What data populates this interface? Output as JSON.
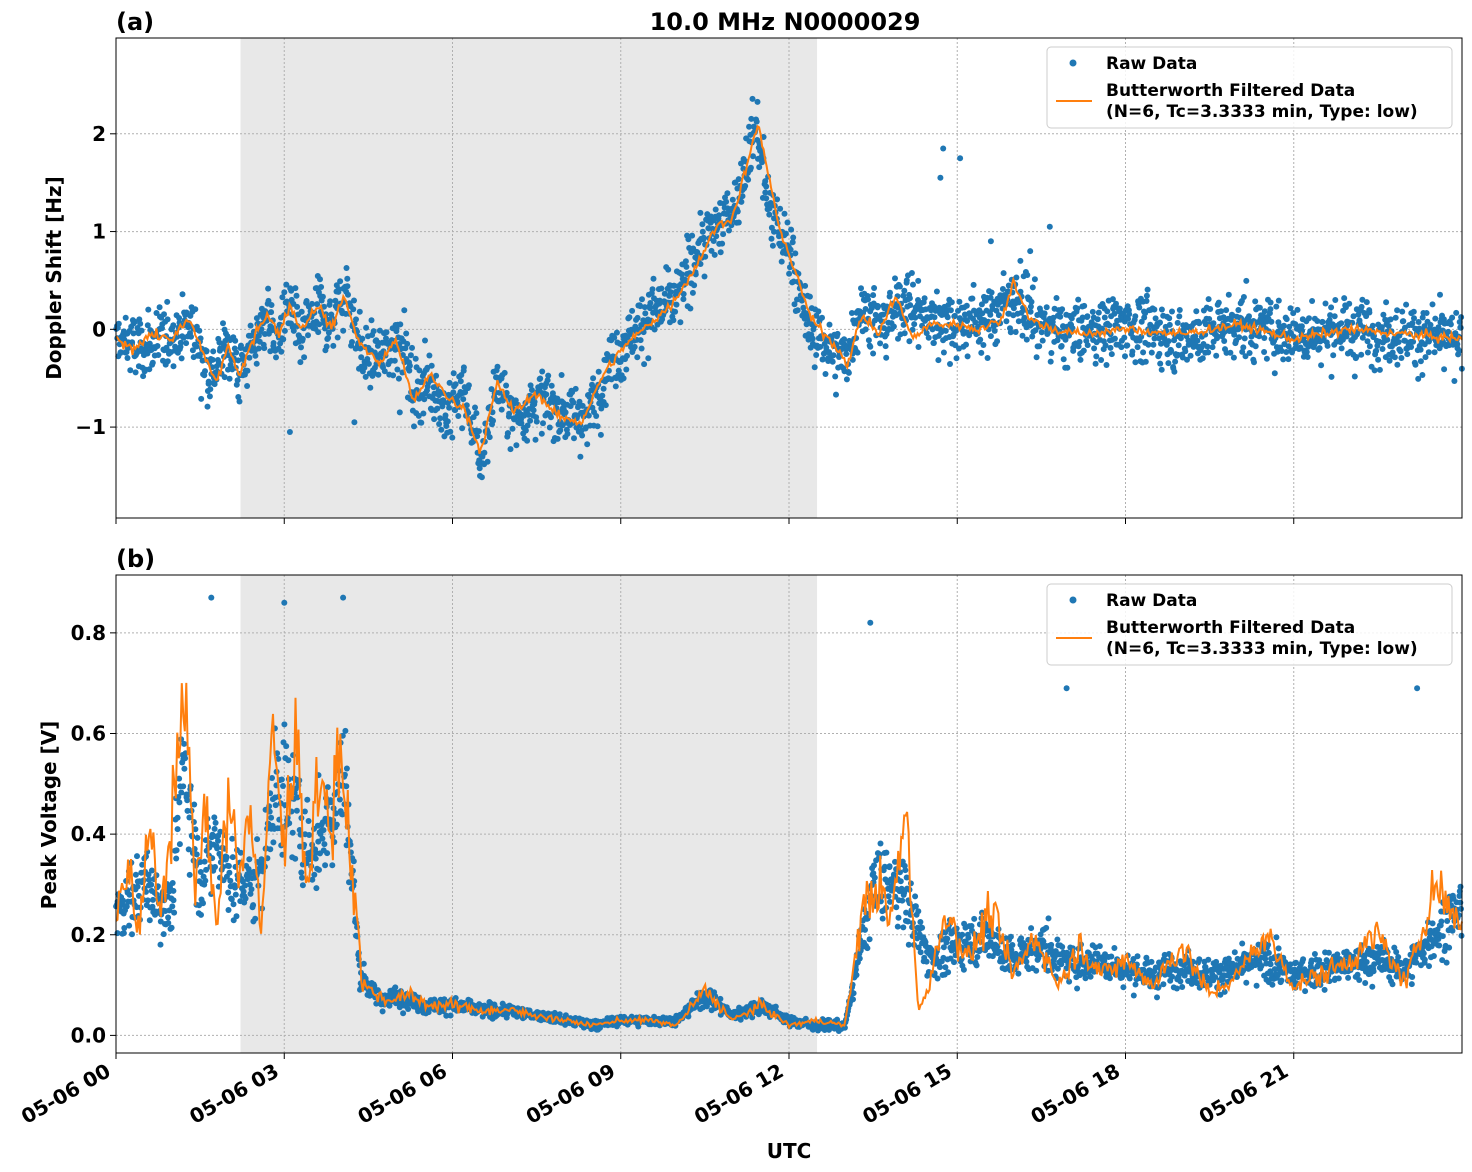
{
  "figure": {
    "xlabel": "UTC",
    "x_ticks": [
      "05-06 00",
      "05-06 03",
      "05-06 06",
      "05-06 09",
      "05-06 12",
      "05-06 15",
      "05-06 18",
      "05-06 21"
    ]
  },
  "chart_data": [
    {
      "type": "scatter",
      "panel_label": "(a)",
      "title": "10.0 MHz N0000029",
      "ylabel": "Doppler Shift [Hz]",
      "xlim_hours": [
        0,
        24
      ],
      "ylim": [
        -1.93,
        2.98
      ],
      "y_ticks": [
        -1,
        0,
        1,
        2
      ],
      "y_tick_labels": [
        "−1",
        "0",
        "1",
        "2"
      ],
      "grid": true,
      "legend_position": "top-right",
      "shaded_region_hours": [
        2.22,
        12.5
      ],
      "series": [
        {
          "name": "Raw Data",
          "kind": "scatter",
          "color": "#1f77b4",
          "points_hours": [
            [
              0,
              -0.1
            ],
            [
              0.5,
              -0.2
            ],
            [
              1,
              -0.05
            ],
            [
              1.35,
              0.05
            ],
            [
              1.7,
              -0.5
            ],
            [
              1.85,
              -0.3
            ],
            [
              2,
              -0.15
            ],
            [
              2.2,
              -0.45
            ],
            [
              2.5,
              -0.1
            ],
            [
              2.7,
              0.2
            ],
            [
              2.85,
              -0.2
            ],
            [
              3.05,
              0.25
            ],
            [
              3.3,
              -0.1
            ],
            [
              3.6,
              0.25
            ],
            [
              3.8,
              0.05
            ],
            [
              4.1,
              0.4
            ],
            [
              4.4,
              -0.3
            ],
            [
              4.8,
              -0.25
            ],
            [
              5.1,
              -0.05
            ],
            [
              5.3,
              -0.65
            ],
            [
              5.6,
              -0.5
            ],
            [
              5.9,
              -0.9
            ],
            [
              6.2,
              -0.6
            ],
            [
              6.5,
              -1.35
            ],
            [
              6.8,
              -0.55
            ],
            [
              7.1,
              -0.95
            ],
            [
              7.5,
              -0.7
            ],
            [
              8,
              -0.85
            ],
            [
              8.4,
              -0.9
            ],
            [
              8.8,
              -0.35
            ],
            [
              9.2,
              -0.05
            ],
            [
              9.6,
              0.2
            ],
            [
              10,
              0.3
            ],
            [
              10.4,
              0.85
            ],
            [
              10.8,
              1.1
            ],
            [
              11.1,
              1.35
            ],
            [
              11.4,
              2.1
            ],
            [
              11.7,
              1.1
            ],
            [
              12,
              0.85
            ],
            [
              12.3,
              0.1
            ],
            [
              12.7,
              -0.2
            ],
            [
              13,
              -0.3
            ],
            [
              13.3,
              0.25
            ],
            [
              13.7,
              0
            ],
            [
              14,
              0.3
            ],
            [
              14.5,
              0.1
            ],
            [
              15,
              0.05
            ],
            [
              15.5,
              0.1
            ],
            [
              16,
              0.35
            ],
            [
              16.5,
              0.05
            ],
            [
              17,
              -0.05
            ],
            [
              18,
              0.05
            ],
            [
              19,
              -0.1
            ],
            [
              20,
              0.05
            ],
            [
              21,
              -0.05
            ],
            [
              22,
              0
            ],
            [
              23,
              -0.05
            ],
            [
              24,
              -0.15
            ]
          ],
          "outliers": [
            [
              13.5,
              0.35
            ],
            [
              14.1,
              0.5
            ],
            [
              14.7,
              1.55
            ],
            [
              14.75,
              1.85
            ],
            [
              15.05,
              1.75
            ],
            [
              14.3,
              0.3
            ],
            [
              16.3,
              0.8
            ],
            [
              16.65,
              1.05
            ],
            [
              15.6,
              0.9
            ],
            [
              5.06,
              -0.85
            ],
            [
              4.25,
              -0.95
            ],
            [
              3.1,
              -1.05
            ]
          ]
        },
        {
          "name": "Butterworth Filtered Data\n(N=6, Tc=3.3333 min, Type: low)",
          "kind": "line",
          "color": "#ff7f0e",
          "points_hours": [
            [
              0,
              -0.1
            ],
            [
              0.3,
              -0.2
            ],
            [
              0.6,
              -0.05
            ],
            [
              1,
              -0.1
            ],
            [
              1.3,
              0.1
            ],
            [
              1.6,
              -0.3
            ],
            [
              1.8,
              -0.55
            ],
            [
              2.0,
              -0.15
            ],
            [
              2.2,
              -0.5
            ],
            [
              2.5,
              0
            ],
            [
              2.7,
              0.15
            ],
            [
              2.9,
              -0.05
            ],
            [
              3.1,
              0.25
            ],
            [
              3.3,
              0
            ],
            [
              3.6,
              0.25
            ],
            [
              3.85,
              0
            ],
            [
              4.05,
              0.35
            ],
            [
              4.35,
              -0.15
            ],
            [
              4.7,
              -0.35
            ],
            [
              5,
              -0.1
            ],
            [
              5.3,
              -0.75
            ],
            [
              5.6,
              -0.45
            ],
            [
              5.9,
              -0.7
            ],
            [
              6.2,
              -0.8
            ],
            [
              6.5,
              -1.25
            ],
            [
              6.8,
              -0.55
            ],
            [
              7.1,
              -0.85
            ],
            [
              7.5,
              -0.65
            ],
            [
              7.9,
              -0.9
            ],
            [
              8.3,
              -0.95
            ],
            [
              8.7,
              -0.45
            ],
            [
              9.1,
              -0.15
            ],
            [
              9.5,
              0.05
            ],
            [
              9.9,
              0.25
            ],
            [
              10.3,
              0.6
            ],
            [
              10.7,
              1.05
            ],
            [
              11.0,
              1.15
            ],
            [
              11.45,
              2.1
            ],
            [
              11.8,
              1.1
            ],
            [
              12.1,
              0.6
            ],
            [
              12.4,
              0.1
            ],
            [
              12.8,
              -0.15
            ],
            [
              13.05,
              -0.35
            ],
            [
              13.3,
              0.15
            ],
            [
              13.6,
              -0.05
            ],
            [
              13.9,
              0.35
            ],
            [
              14.2,
              -0.1
            ],
            [
              14.5,
              0.05
            ],
            [
              15,
              0.05
            ],
            [
              15.4,
              0
            ],
            [
              15.8,
              0.1
            ],
            [
              16.0,
              0.5
            ],
            [
              16.3,
              0.1
            ],
            [
              16.7,
              0
            ],
            [
              17.2,
              -0.05
            ],
            [
              18,
              0
            ],
            [
              19,
              -0.05
            ],
            [
              20,
              0.05
            ],
            [
              21,
              -0.1
            ],
            [
              22,
              0
            ],
            [
              23,
              -0.05
            ],
            [
              24,
              -0.1
            ]
          ]
        }
      ]
    },
    {
      "type": "scatter",
      "panel_label": "(b)",
      "title": "",
      "ylabel": "Peak Voltage [V]",
      "xlabel": "UTC",
      "xlim_hours": [
        0,
        24
      ],
      "ylim": [
        -0.035,
        0.915
      ],
      "y_ticks": [
        0,
        0.2,
        0.4,
        0.6,
        0.8
      ],
      "y_tick_labels": [
        "0.0",
        "0.2",
        "0.4",
        "0.6",
        "0.8"
      ],
      "grid": true,
      "legend_position": "top-right",
      "shaded_region_hours": [
        2.22,
        12.5
      ],
      "series": [
        {
          "name": "Raw Data",
          "kind": "scatter",
          "color": "#1f77b4",
          "points_hours": [
            [
              0,
              0.25
            ],
            [
              0.5,
              0.3
            ],
            [
              1,
              0.25
            ],
            [
              1.2,
              0.55
            ],
            [
              1.5,
              0.3
            ],
            [
              1.8,
              0.4
            ],
            [
              2.1,
              0.3
            ],
            [
              2.5,
              0.3
            ],
            [
              2.9,
              0.5
            ],
            [
              3.2,
              0.45
            ],
            [
              3.5,
              0.35
            ],
            [
              3.8,
              0.45
            ],
            [
              4.1,
              0.5
            ],
            [
              4.35,
              0.12
            ],
            [
              4.7,
              0.07
            ],
            [
              5,
              0.08
            ],
            [
              5.5,
              0.06
            ],
            [
              6,
              0.06
            ],
            [
              6.5,
              0.05
            ],
            [
              7,
              0.05
            ],
            [
              7.5,
              0.04
            ],
            [
              8,
              0.03
            ],
            [
              8.5,
              0.02
            ],
            [
              9,
              0.03
            ],
            [
              9.5,
              0.03
            ],
            [
              10,
              0.03
            ],
            [
              10.5,
              0.08
            ],
            [
              11,
              0.04
            ],
            [
              11.5,
              0.06
            ],
            [
              12,
              0.03
            ],
            [
              12.5,
              0.02
            ],
            [
              13,
              0.02
            ],
            [
              13.5,
              0.3
            ],
            [
              14,
              0.3
            ],
            [
              14.5,
              0.15
            ],
            [
              15,
              0.18
            ],
            [
              15.5,
              0.2
            ],
            [
              16,
              0.15
            ],
            [
              16.5,
              0.18
            ],
            [
              17,
              0.14
            ],
            [
              17.5,
              0.15
            ],
            [
              18,
              0.13
            ],
            [
              18.5,
              0.12
            ],
            [
              19,
              0.14
            ],
            [
              19.5,
              0.12
            ],
            [
              20,
              0.13
            ],
            [
              20.5,
              0.15
            ],
            [
              21,
              0.12
            ],
            [
              21.5,
              0.13
            ],
            [
              22,
              0.14
            ],
            [
              22.5,
              0.15
            ],
            [
              23,
              0.13
            ],
            [
              23.5,
              0.2
            ],
            [
              24,
              0.25
            ]
          ],
          "outliers": [
            [
              1.7,
              0.87
            ],
            [
              3.0,
              0.86
            ],
            [
              4.05,
              0.87
            ],
            [
              13.45,
              0.82
            ],
            [
              16.95,
              0.69
            ],
            [
              23.2,
              0.69
            ]
          ]
        },
        {
          "name": "Butterworth Filtered Data\n(N=6, Tc=3.3333 min, Type: low)",
          "kind": "line",
          "color": "#ff7f0e",
          "points_hours": [
            [
              0,
              0.25
            ],
            [
              0.2,
              0.33
            ],
            [
              0.4,
              0.2
            ],
            [
              0.6,
              0.4
            ],
            [
              0.8,
              0.25
            ],
            [
              1.0,
              0.45
            ],
            [
              1.2,
              0.74
            ],
            [
              1.4,
              0.3
            ],
            [
              1.6,
              0.45
            ],
            [
              1.8,
              0.2
            ],
            [
              2.0,
              0.5
            ],
            [
              2.2,
              0.3
            ],
            [
              2.4,
              0.45
            ],
            [
              2.6,
              0.2
            ],
            [
              2.8,
              0.65
            ],
            [
              3.0,
              0.35
            ],
            [
              3.2,
              0.62
            ],
            [
              3.4,
              0.3
            ],
            [
              3.6,
              0.52
            ],
            [
              3.8,
              0.4
            ],
            [
              4.0,
              0.58
            ],
            [
              4.2,
              0.35
            ],
            [
              4.4,
              0.1
            ],
            [
              4.8,
              0.07
            ],
            [
              5.2,
              0.08
            ],
            [
              5.6,
              0.06
            ],
            [
              6.0,
              0.06
            ],
            [
              6.5,
              0.05
            ],
            [
              7.0,
              0.05
            ],
            [
              7.5,
              0.04
            ],
            [
              8,
              0.03
            ],
            [
              8.5,
              0.02
            ],
            [
              9,
              0.03
            ],
            [
              9.5,
              0.03
            ],
            [
              10,
              0.02
            ],
            [
              10.5,
              0.09
            ],
            [
              11,
              0.03
            ],
            [
              11.5,
              0.06
            ],
            [
              12,
              0.02
            ],
            [
              12.5,
              0.03
            ],
            [
              13,
              0.02
            ],
            [
              13.3,
              0.25
            ],
            [
              13.6,
              0.3
            ],
            [
              13.8,
              0.22
            ],
            [
              14.1,
              0.45
            ],
            [
              14.3,
              0.05
            ],
            [
              14.5,
              0.1
            ],
            [
              14.8,
              0.25
            ],
            [
              15.2,
              0.15
            ],
            [
              15.6,
              0.25
            ],
            [
              16,
              0.12
            ],
            [
              16.4,
              0.2
            ],
            [
              16.8,
              0.1
            ],
            [
              17.2,
              0.18
            ],
            [
              17.6,
              0.12
            ],
            [
              18,
              0.15
            ],
            [
              18.5,
              0.1
            ],
            [
              19,
              0.18
            ],
            [
              19.5,
              0.08
            ],
            [
              20,
              0.12
            ],
            [
              20.5,
              0.2
            ],
            [
              21,
              0.1
            ],
            [
              21.5,
              0.12
            ],
            [
              22,
              0.15
            ],
            [
              22.5,
              0.2
            ],
            [
              23,
              0.1
            ],
            [
              23.5,
              0.3
            ],
            [
              24,
              0.22
            ]
          ]
        }
      ]
    }
  ]
}
